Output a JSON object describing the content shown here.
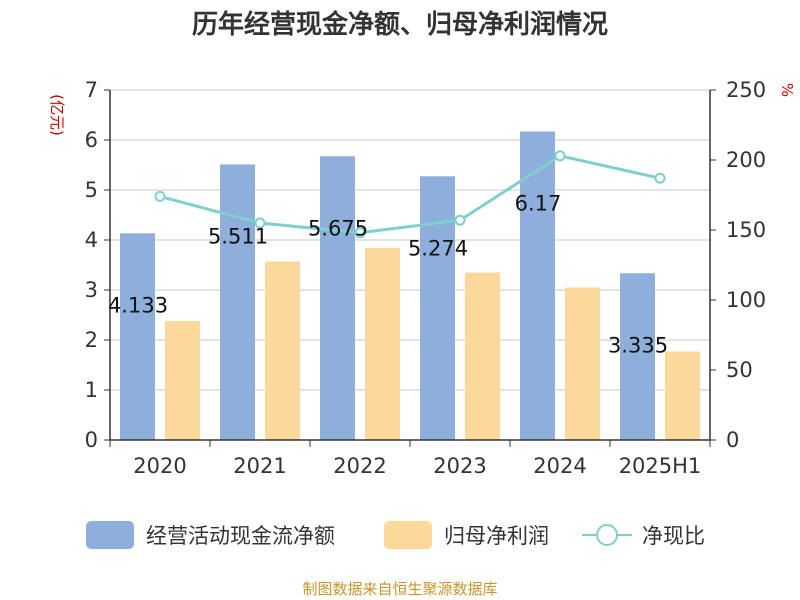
{
  "chart_data": {
    "type": "bar",
    "title": "历年经营现金净额、归母净利润情况",
    "categories": [
      "2020",
      "2021",
      "2022",
      "2023",
      "2024",
      "2025H1"
    ],
    "left_unit": "(亿元)",
    "right_unit": "%",
    "ylim_left": [
      0,
      7
    ],
    "ylim_right": [
      0,
      250
    ],
    "yticks_left": [
      "0",
      "1",
      "2",
      "3",
      "4",
      "5",
      "6",
      "7"
    ],
    "yticks_right": [
      "0",
      "50",
      "100",
      "150",
      "200",
      "250"
    ],
    "grid": true,
    "legend_position": "bottom",
    "series": [
      {
        "name": "经营活动现金流净额",
        "kind": "bar",
        "axis": "left",
        "values": [
          4.133,
          5.511,
          5.675,
          5.274,
          6.17,
          3.335
        ],
        "labels": [
          "4.133",
          "5.511",
          "5.675",
          "5.274",
          "6.17",
          "3.335"
        ]
      },
      {
        "name": "归母净利润",
        "kind": "bar",
        "axis": "left",
        "values": [
          2.38,
          3.57,
          3.84,
          3.35,
          3.05,
          1.77
        ]
      },
      {
        "name": "净现比",
        "kind": "line",
        "axis": "right",
        "values": [
          174,
          155,
          148,
          157,
          203,
          187
        ]
      }
    ],
    "colors": {
      "bar1": "#8eaedb",
      "bar2": "#fdd89b",
      "line": "#7fcfcf",
      "unit_text": "#cc0000",
      "source_text": "#c8962a",
      "grid": "#c8c8c8",
      "axis": "#333333"
    }
  },
  "source": "制图数据来自恒生聚源数据库"
}
